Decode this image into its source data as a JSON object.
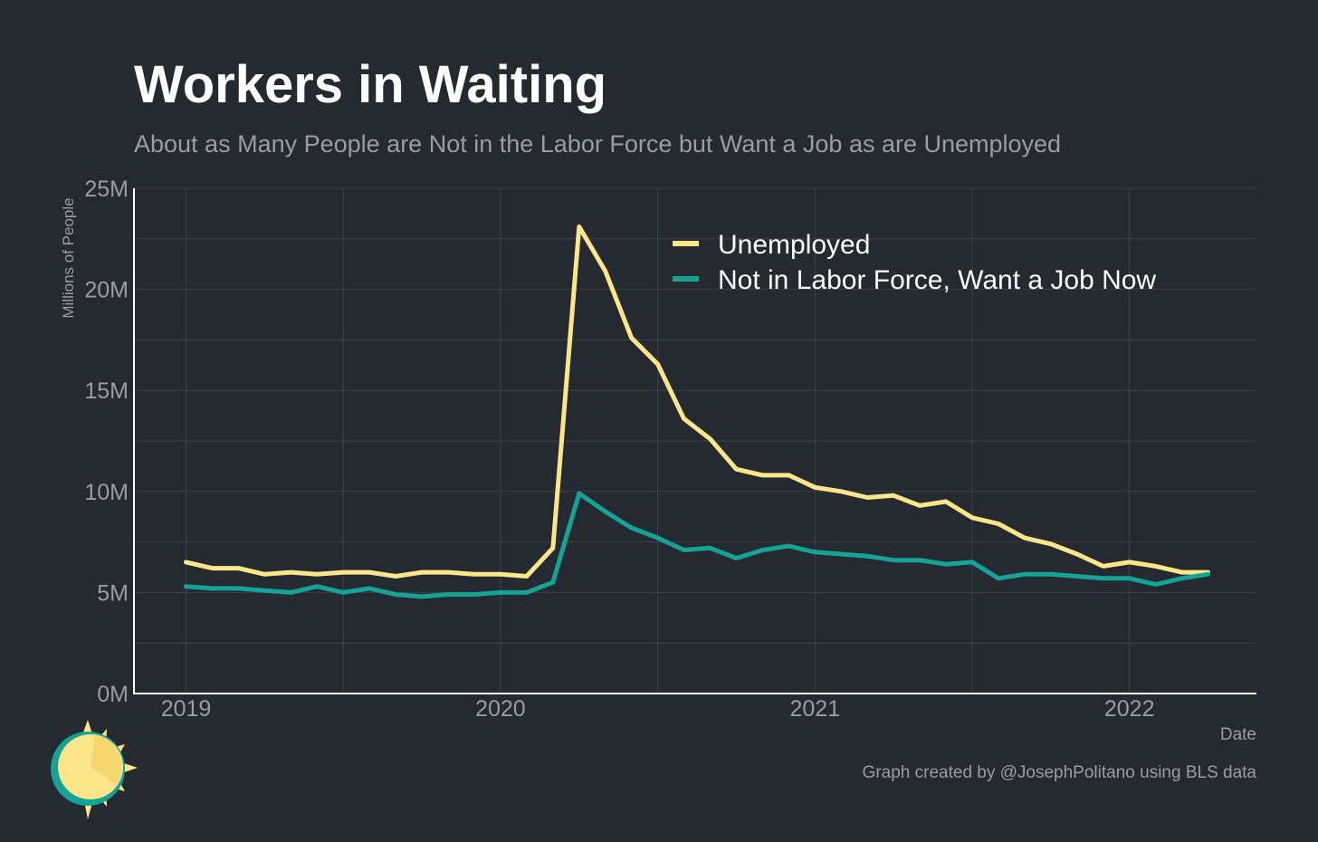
{
  "colors": {
    "background": "#252930",
    "grid": "#3d424b",
    "axis": "#ffffff",
    "tick_text": "#9a9da3",
    "title": "#ffffff",
    "subtitle": "#9a9da3",
    "unemployed": "#fde68a",
    "not_in_labor_force": "#14a396",
    "legend_text": "#ffffff"
  },
  "chart_data": {
    "type": "line",
    "title": "Workers in Waiting",
    "subtitle": "About as Many People are Not in the Labor Force but Want a Job as are Unemployed",
    "xlabel": "Date",
    "ylabel": "Millions of People",
    "caption": "Graph created by @JosephPolitano using BLS data",
    "ylim": [
      0,
      25
    ],
    "xlim": [
      "2018-11",
      "2022-06"
    ],
    "y_ticks": [
      0,
      5,
      10,
      15,
      20,
      25
    ],
    "y_tick_labels": [
      "0M",
      "5M",
      "10M",
      "15M",
      "20M",
      "25M"
    ],
    "x_ticks": [
      "2019-01",
      "2020-01",
      "2021-01",
      "2022-01"
    ],
    "x_tick_labels": [
      "2019",
      "2020",
      "2021",
      "2022"
    ],
    "grid": true,
    "legend_position": "top-right",
    "x": [
      "2019-01",
      "2019-02",
      "2019-03",
      "2019-04",
      "2019-05",
      "2019-06",
      "2019-07",
      "2019-08",
      "2019-09",
      "2019-10",
      "2019-11",
      "2019-12",
      "2020-01",
      "2020-02",
      "2020-03",
      "2020-04",
      "2020-05",
      "2020-06",
      "2020-07",
      "2020-08",
      "2020-09",
      "2020-10",
      "2020-11",
      "2020-12",
      "2021-01",
      "2021-02",
      "2021-03",
      "2021-04",
      "2021-05",
      "2021-06",
      "2021-07",
      "2021-08",
      "2021-09",
      "2021-10",
      "2021-11",
      "2021-12",
      "2022-01",
      "2022-02",
      "2022-03",
      "2022-04"
    ],
    "series": [
      {
        "name": "Unemployed",
        "color_key": "unemployed",
        "values": [
          6.5,
          6.2,
          6.2,
          5.9,
          6.0,
          5.9,
          6.0,
          6.0,
          5.8,
          6.0,
          6.0,
          5.9,
          5.9,
          5.8,
          7.2,
          23.1,
          20.9,
          17.6,
          16.3,
          13.6,
          12.6,
          11.1,
          10.8,
          10.8,
          10.2,
          10.0,
          9.7,
          9.8,
          9.3,
          9.5,
          8.7,
          8.4,
          7.7,
          7.4,
          6.9,
          6.3,
          6.5,
          6.3,
          6.0,
          6.0
        ]
      },
      {
        "name": "Not in Labor Force, Want a Job Now",
        "color_key": "not_in_labor_force",
        "values": [
          5.3,
          5.2,
          5.2,
          5.1,
          5.0,
          5.3,
          5.0,
          5.2,
          4.9,
          4.8,
          4.9,
          4.9,
          5.0,
          5.0,
          5.5,
          9.9,
          9.0,
          8.2,
          7.7,
          7.1,
          7.2,
          6.7,
          7.1,
          7.3,
          7.0,
          6.9,
          6.8,
          6.6,
          6.6,
          6.4,
          6.5,
          5.7,
          5.9,
          5.9,
          5.8,
          5.7,
          5.7,
          5.4,
          5.7,
          5.9
        ]
      }
    ]
  }
}
